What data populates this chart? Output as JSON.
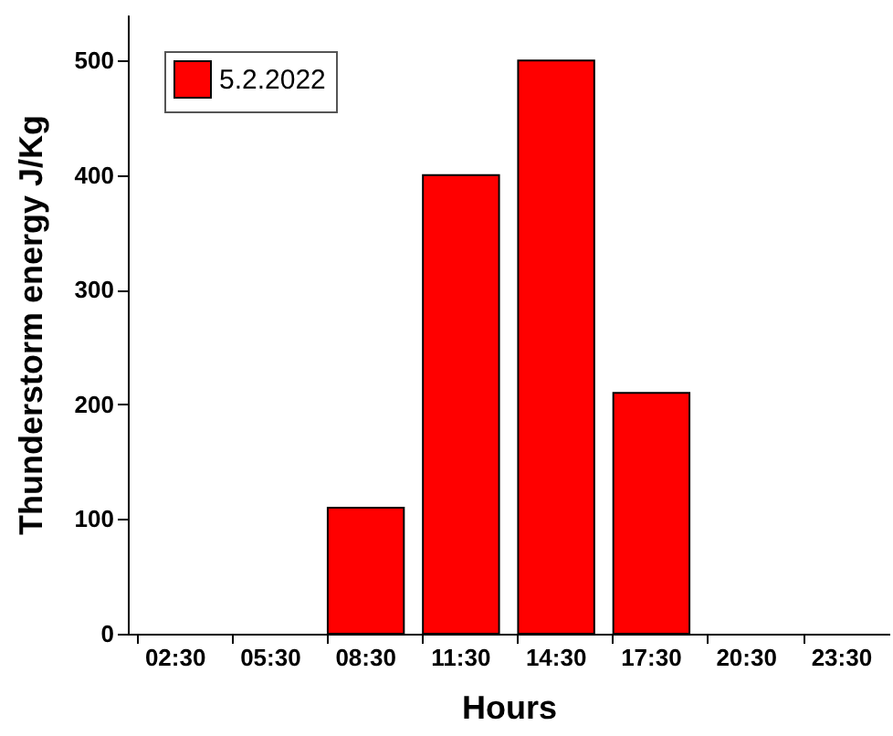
{
  "chart_data": {
    "type": "bar",
    "xlabel": "Hours",
    "ylabel": "Thunderstorm energy J/Kg",
    "categories": [
      "02:30",
      "05:30",
      "08:30",
      "11:30",
      "14:30",
      "17:30",
      "20:30",
      "23:30"
    ],
    "series": [
      {
        "name": "5.2.2022",
        "color": "#ff0000",
        "values": [
          0,
          0,
          110,
          400,
          500,
          210,
          0,
          0
        ]
      }
    ],
    "ylim": [
      0,
      540
    ],
    "yticks": [
      0,
      100,
      200,
      300,
      400,
      500
    ],
    "grid": false,
    "legend": "top left"
  }
}
